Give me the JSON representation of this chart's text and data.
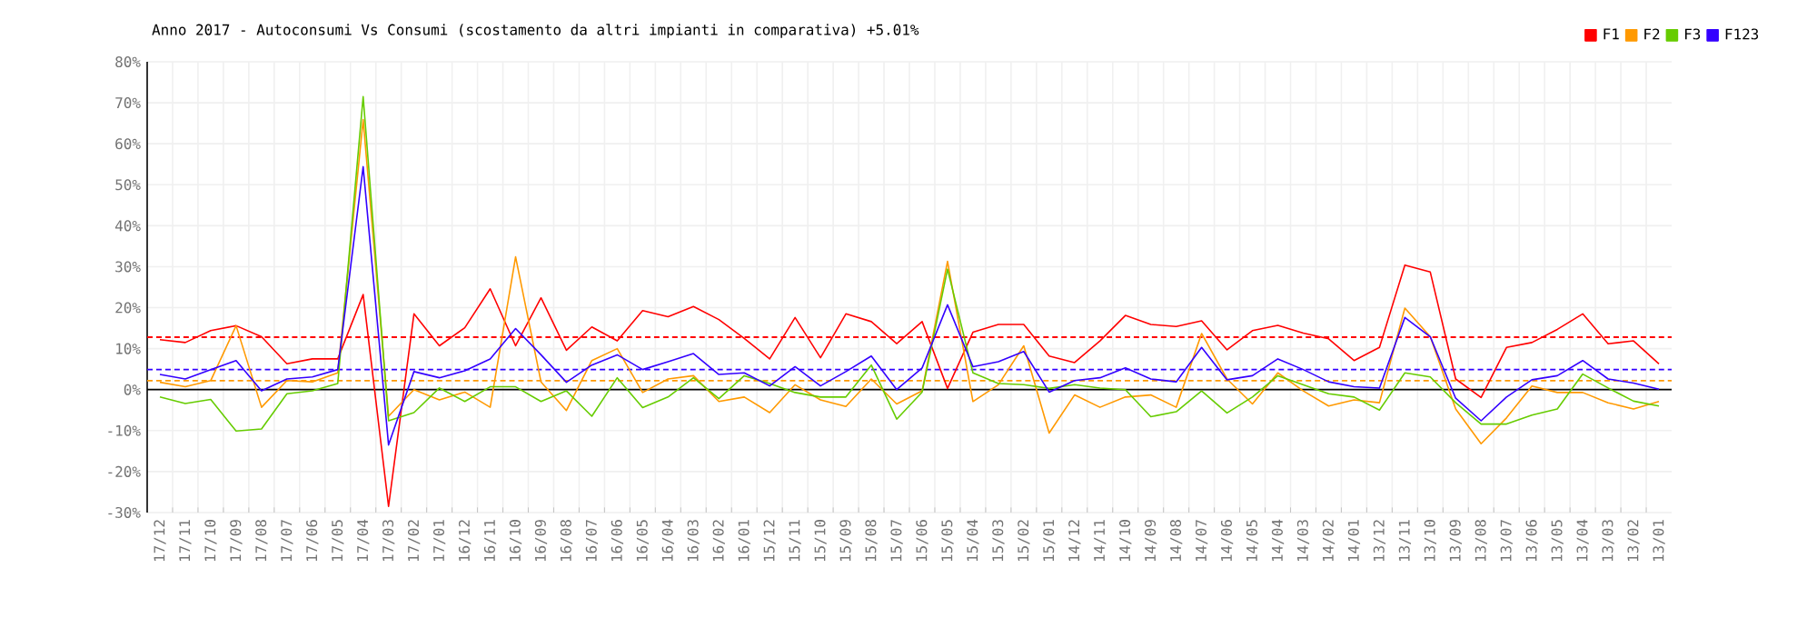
{
  "chart_data": {
    "type": "line",
    "title": "Anno 2017 - Autoconsumi Vs Consumi (scostamento da altri impianti in comparativa) +5.01%",
    "categories": [
      "17/12",
      "17/11",
      "17/10",
      "17/09",
      "17/08",
      "17/07",
      "17/06",
      "17/05",
      "17/04",
      "17/03",
      "17/02",
      "17/01",
      "16/12",
      "16/11",
      "16/10",
      "16/09",
      "16/08",
      "16/07",
      "16/06",
      "16/05",
      "16/04",
      "16/03",
      "16/02",
      "16/01",
      "15/12",
      "15/11",
      "15/10",
      "15/09",
      "15/08",
      "15/07",
      "15/06",
      "15/05",
      "15/04",
      "15/03",
      "15/02",
      "15/01",
      "14/12",
      "14/11",
      "14/10",
      "14/09",
      "14/08",
      "14/07",
      "14/06",
      "14/05",
      "14/04",
      "14/03",
      "14/02",
      "14/01",
      "13/12",
      "13/11",
      "13/10",
      "13/09",
      "13/08",
      "13/07",
      "13/06",
      "13/05",
      "13/04",
      "13/03",
      "13/02",
      "13/01"
    ],
    "series": [
      {
        "name": "F1",
        "color": "#ff0000",
        "values": [
          12.2,
          11.5,
          14.4,
          15.6,
          12.9,
          6.3,
          7.5,
          7.5,
          23.2,
          -28.5,
          18.5,
          10.7,
          15.1,
          24.6,
          10.7,
          22.4,
          9.6,
          15.3,
          11.9,
          19.3,
          17.8,
          20.3,
          17.1,
          12.5,
          7.5,
          17.6,
          7.8,
          18.5,
          16.6,
          11.2,
          16.6,
          0.3,
          14.0,
          15.9,
          15.9,
          8.2,
          6.6,
          11.9,
          18.1,
          15.9,
          15.4,
          16.8,
          9.7,
          14.4,
          15.7,
          13.8,
          12.4,
          7.1,
          10.3,
          30.4,
          28.7,
          2.6,
          -1.9,
          10.3,
          11.5,
          14.7,
          18.5,
          11.2,
          11.9,
          6.3
        ]
      },
      {
        "name": "F2",
        "color": "#ff9900",
        "values": [
          1.8,
          0.7,
          2.2,
          15.6,
          -4.3,
          2.2,
          1.9,
          4.1,
          65.9,
          -6.5,
          0,
          -2.5,
          -0.6,
          -4.3,
          32.4,
          1.9,
          -5.1,
          7.1,
          10,
          -0.7,
          2.6,
          3.4,
          -2.9,
          -1.8,
          -5.6,
          1.2,
          -2.5,
          -4.1,
          2.6,
          -3.5,
          -0.3,
          31.3,
          -2.9,
          1.2,
          10.7,
          -10.6,
          -1.3,
          -4.3,
          -1.8,
          -1.3,
          -4.3,
          13.7,
          2.6,
          -3.5,
          4.1,
          -0.3,
          -4.0,
          -2.5,
          -3.2,
          19.9,
          12.9,
          -4.7,
          -13.2,
          -6.9,
          0.9,
          -0.7,
          -0.7,
          -3.2,
          -4.7,
          -2.9
        ]
      },
      {
        "name": "F3",
        "color": "#66cc00",
        "values": [
          -1.8,
          -3.4,
          -2.4,
          -10.1,
          -9.6,
          -1.0,
          -0.3,
          1.5,
          71.5,
          -7.6,
          -5.6,
          0.4,
          -2.9,
          0.7,
          0.7,
          -2.9,
          -0.3,
          -6.5,
          2.9,
          -4.4,
          -1.8,
          2.9,
          -2.2,
          3.4,
          1.5,
          -0.7,
          -1.8,
          -1.8,
          6.0,
          -7.2,
          -0.6,
          29.4,
          4.1,
          1.5,
          1.2,
          0.3,
          1.2,
          0.4,
          0,
          -6.6,
          -5.4,
          -0.3,
          -5.7,
          -1.8,
          3.4,
          1.2,
          -1.0,
          -1.8,
          -5.0,
          4.1,
          3.1,
          -3.2,
          -8.4,
          -8.4,
          -6.2,
          -4.7,
          3.8,
          0.4,
          -2.8,
          -4.0
        ]
      },
      {
        "name": "F123",
        "color": "#3300ff",
        "values": [
          3.7,
          2.6,
          4.9,
          7.1,
          -0.3,
          2.6,
          3.1,
          4.9,
          54.4,
          -13.5,
          4.4,
          2.9,
          4.6,
          7.5,
          14.9,
          8.5,
          1.8,
          6.0,
          8.5,
          4.9,
          6.8,
          8.8,
          3.7,
          4.1,
          0.9,
          5.6,
          0.9,
          4.4,
          8.2,
          0,
          5.3,
          20.7,
          5.6,
          6.8,
          9.3,
          -0.6,
          2.2,
          2.9,
          5.3,
          2.6,
          1.9,
          10.3,
          2.4,
          3.4,
          7.5,
          4.9,
          1.9,
          0.7,
          0.4,
          17.6,
          12.9,
          -2.1,
          -7.6,
          -1.8,
          2.4,
          3.4,
          7.1,
          2.6,
          1.6,
          0.1
        ]
      }
    ],
    "ylim": [
      -30,
      80
    ],
    "yticks": [
      {
        "value": -30,
        "label": "-30%"
      },
      {
        "value": -20,
        "label": "-20%"
      },
      {
        "value": -10,
        "label": "-10%"
      },
      {
        "value": 0,
        "label": "0%"
      },
      {
        "value": 10,
        "label": "10%"
      },
      {
        "value": 20,
        "label": "20%"
      },
      {
        "value": 30,
        "label": "30%"
      },
      {
        "value": 40,
        "label": "40%"
      },
      {
        "value": 50,
        "label": "50%"
      },
      {
        "value": 60,
        "label": "60%"
      },
      {
        "value": 70,
        "label": "70%"
      },
      {
        "value": 80,
        "label": "80%"
      }
    ],
    "ref_lines": [
      {
        "axis": "y",
        "value": 0,
        "color": "#000000",
        "line_style": "solid"
      },
      {
        "axis": "y",
        "value": 12.8,
        "color": "#ff0000",
        "line_style": "dashed"
      },
      {
        "axis": "y",
        "value": 4.9,
        "color": "#3300ff",
        "line_style": "dashed"
      },
      {
        "axis": "y",
        "value": 2.2,
        "color": "#ff9900",
        "line_style": "dashed"
      }
    ],
    "grid": true,
    "legend": "top right",
    "marker": "none",
    "line_style": "solid"
  }
}
